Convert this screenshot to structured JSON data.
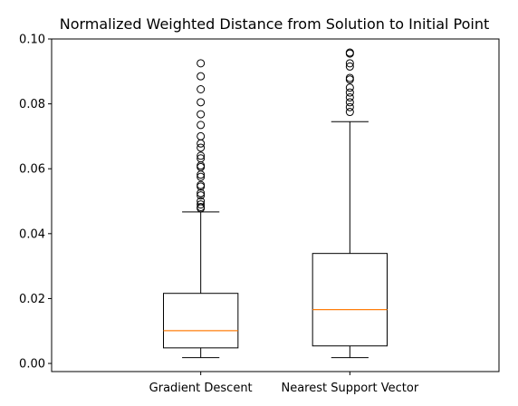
{
  "chart_data": {
    "type": "boxplot",
    "title": "Normalized Weighted Distance from Solution to Initial Point",
    "xlabel": "",
    "ylabel": "",
    "ylim": [
      -0.0025,
      0.1
    ],
    "yticks": [
      0.0,
      0.02,
      0.04,
      0.06,
      0.08,
      0.1
    ],
    "ytick_labels": [
      "0.00",
      "0.02",
      "0.04",
      "0.06",
      "0.08",
      "0.10"
    ],
    "grid": false,
    "categories": [
      "Gradient Descent",
      "Nearest Support Vector"
    ],
    "boxes": [
      {
        "whisker_low": 0.0018,
        "q1": 0.0048,
        "median": 0.0101,
        "q3": 0.0216,
        "whisker_high": 0.0467,
        "outliers": [
          0.0925,
          0.0885,
          0.0845,
          0.0805,
          0.0768,
          0.0735,
          0.07,
          0.0678,
          0.0665,
          0.064,
          0.0632,
          0.061,
          0.0605,
          0.0582,
          0.0575,
          0.055,
          0.0545,
          0.0525,
          0.0518,
          0.05,
          0.049,
          0.0482,
          0.0478
        ]
      },
      {
        "whisker_low": 0.0018,
        "q1": 0.0054,
        "median": 0.0166,
        "q3": 0.0339,
        "whisker_high": 0.0745,
        "outliers": [
          0.0958,
          0.0955,
          0.0925,
          0.0915,
          0.088,
          0.0875,
          0.085,
          0.0835,
          0.082,
          0.0805,
          0.079,
          0.0775
        ]
      }
    ],
    "colors": {
      "box": "#000000",
      "median": "#ff7f0e",
      "outlier": "#000000"
    }
  }
}
